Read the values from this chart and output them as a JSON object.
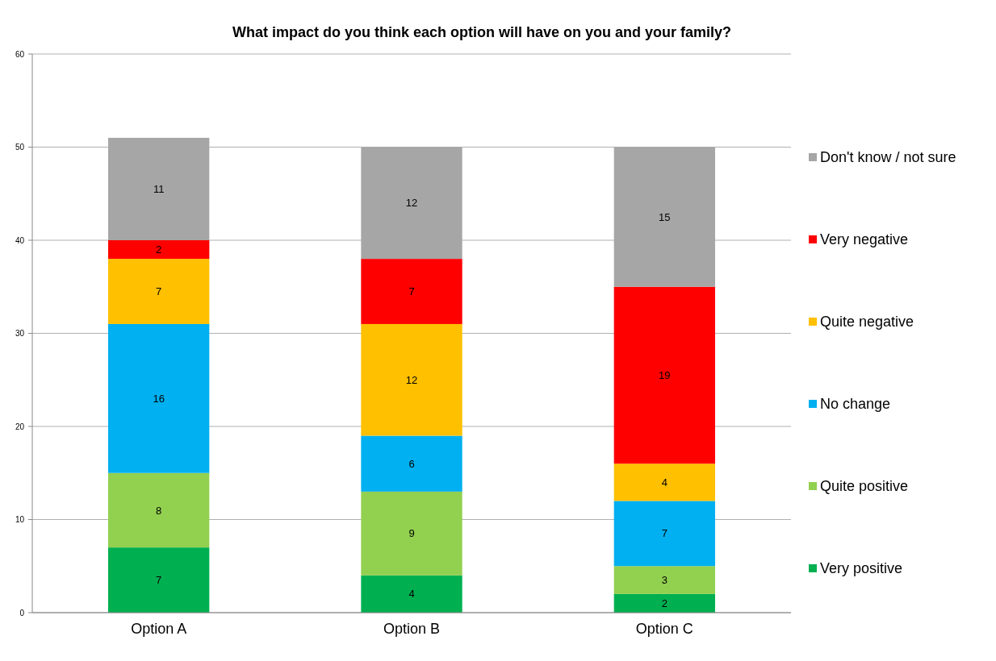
{
  "chart_data": {
    "type": "bar",
    "title": "What impact do you think each option will have on you and your family?",
    "categories": [
      "Option A",
      "Option B",
      "Option C"
    ],
    "stacked": true,
    "data_labels": true,
    "grid": "y",
    "legend": "right",
    "ylim": [
      0,
      60
    ],
    "yticks": [
      0,
      10,
      20,
      30,
      40,
      50,
      60
    ],
    "series": [
      {
        "name": "Very positive",
        "color": "#00b050",
        "values": [
          7,
          4,
          2
        ]
      },
      {
        "name": "Quite positive",
        "color": "#92d050",
        "values": [
          8,
          9,
          3
        ]
      },
      {
        "name": "No change",
        "color": "#00b0f0",
        "values": [
          16,
          6,
          7
        ]
      },
      {
        "name": "Quite negative",
        "color": "#ffc000",
        "values": [
          7,
          12,
          4
        ]
      },
      {
        "name": "Very negative",
        "color": "#ff0000",
        "values": [
          2,
          7,
          19
        ]
      },
      {
        "name": "Don't know / not sure",
        "color": "#a6a6a6",
        "values": [
          11,
          12,
          15
        ]
      }
    ]
  }
}
